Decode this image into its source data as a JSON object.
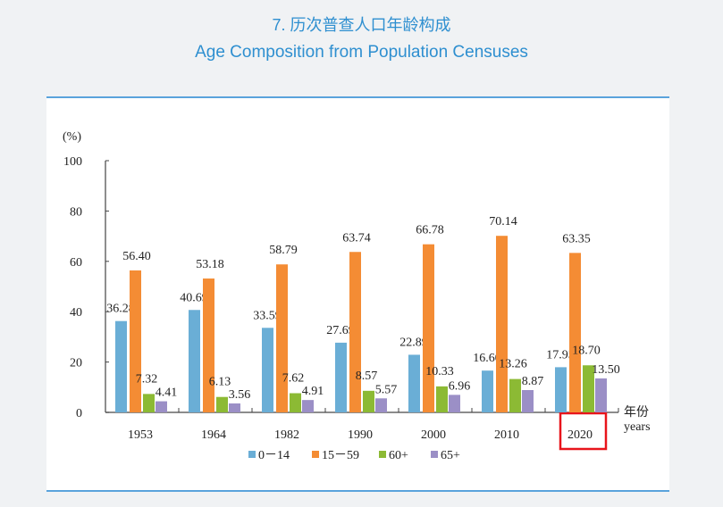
{
  "title_cn": "7. 历次普查人口年龄构成",
  "title_en": "Age Composition from Population Censuses",
  "chart_data": {
    "type": "bar",
    "ylabel": "(%)",
    "xlabel_cn": "年份",
    "xlabel_en": "years",
    "ylim": [
      0,
      100
    ],
    "yticks": [
      0,
      20,
      40,
      60,
      80,
      100
    ],
    "categories": [
      "1953",
      "1964",
      "1982",
      "1990",
      "2000",
      "2010",
      "2020"
    ],
    "series": [
      {
        "name": "0－14",
        "color": "#6aaed6",
        "values": [
          36.28,
          40.69,
          33.59,
          27.69,
          22.89,
          16.6,
          17.95
        ]
      },
      {
        "name": "15－59",
        "color": "#f48c34",
        "values": [
          56.4,
          53.18,
          58.79,
          63.74,
          66.78,
          70.14,
          63.35
        ]
      },
      {
        "name": "60+",
        "color": "#8cba34",
        "values": [
          7.32,
          6.13,
          7.62,
          8.57,
          10.33,
          13.26,
          18.7
        ]
      },
      {
        "name": "65+",
        "color": "#9b8fc6",
        "values": [
          4.41,
          3.56,
          4.91,
          5.57,
          6.96,
          8.87,
          13.5
        ]
      }
    ],
    "legend": "bottom",
    "grid": false,
    "highlight": {
      "category": "2020",
      "color": "#e8141b"
    }
  }
}
